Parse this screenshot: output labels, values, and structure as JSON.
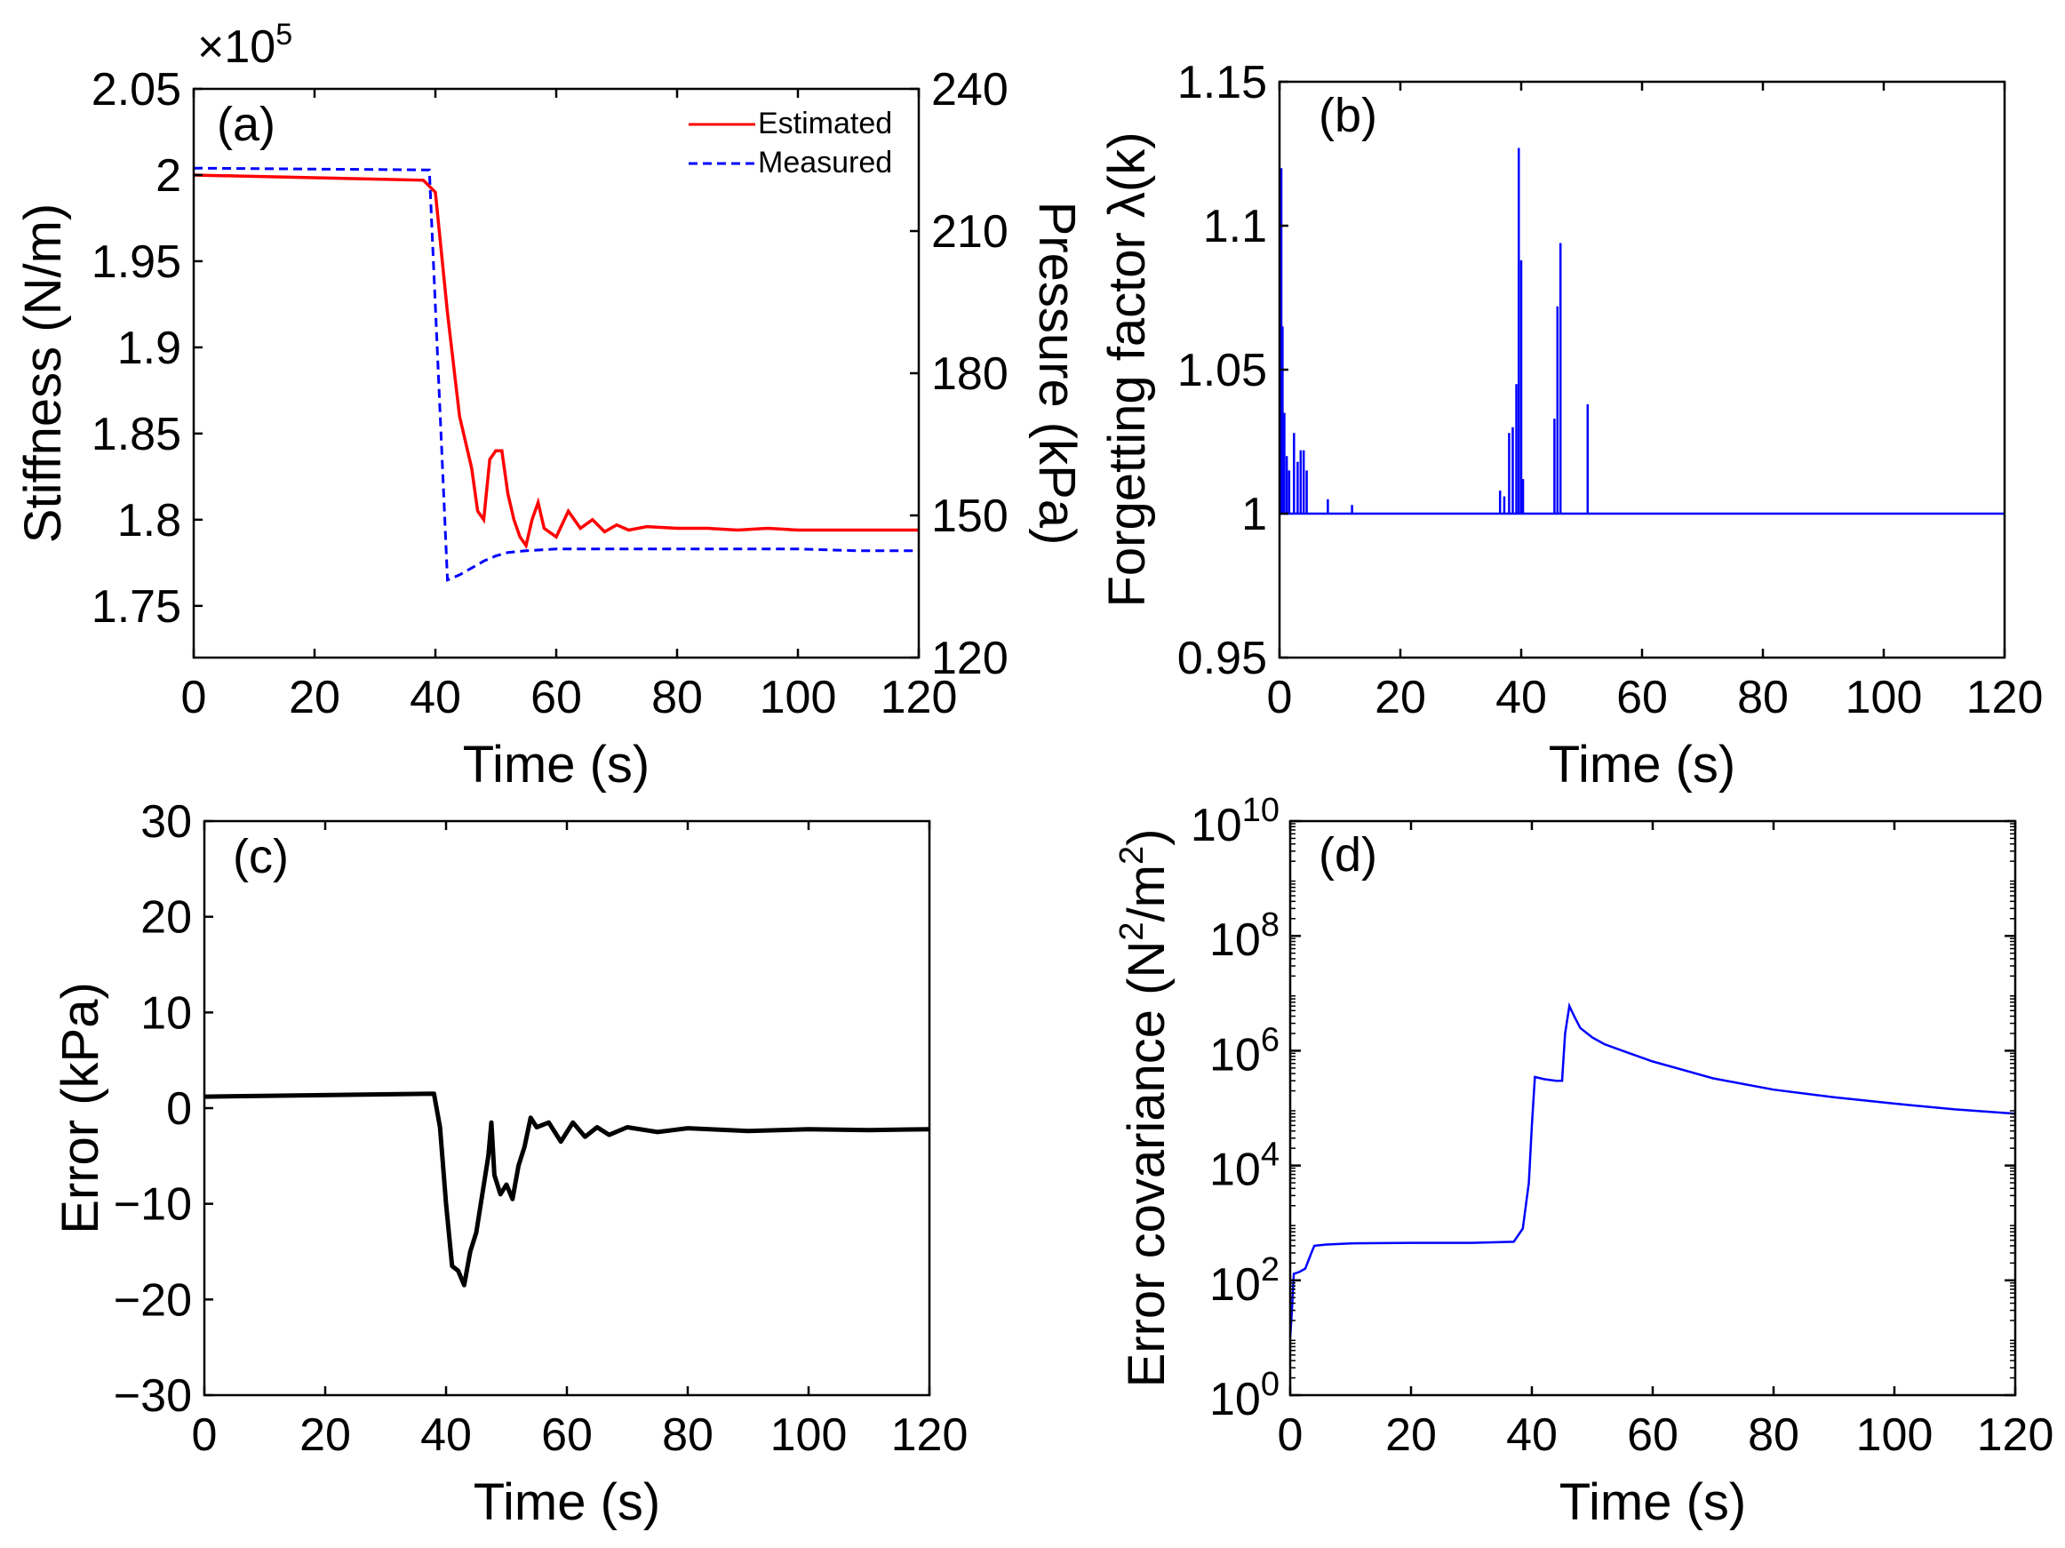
{
  "figure": {
    "panels": [
      {
        "id": "a",
        "letter": "(a)",
        "xlabel": "Time (s)",
        "ylabel": "Stiffness (N/m)",
        "ylabel_right": "Pressure (kPa)",
        "y_exponent_base": "×10",
        "y_exponent_power": "5",
        "legend": [
          {
            "label": "Estimated",
            "color": "#ff0000",
            "style": "solid"
          },
          {
            "label": "Measured",
            "color": "#0000ff",
            "style": "dashed"
          }
        ]
      },
      {
        "id": "b",
        "letter": "(b)",
        "xlabel": "Time (s)",
        "ylabel": "Forgetting factor λ(k)"
      },
      {
        "id": "c",
        "letter": "(c)",
        "xlabel": "Time (s)",
        "ylabel": "Error (kPa)"
      },
      {
        "id": "d",
        "letter": "(d)",
        "xlabel": "Time (s)",
        "ylabel_main": "Error covariance (N",
        "ylabel_sup1": "2",
        "ylabel_mid": "/m",
        "ylabel_sup2": "2",
        "ylabel_end": ")"
      }
    ]
  },
  "chart_data": [
    {
      "panel": "a",
      "type": "line",
      "xlabel": "Time (s)",
      "ylabel": "Stiffness (N/m)",
      "ylabel_right": "Pressure (kPa)",
      "xlim": [
        0,
        120
      ],
      "ylim": [
        1.72,
        2.05
      ],
      "y_scale_factor": "×10^5",
      "ylim_right": [
        120,
        240
      ],
      "x_ticks": [
        0,
        20,
        40,
        60,
        80,
        100,
        120
      ],
      "y_ticks": [
        1.75,
        1.8,
        1.85,
        1.9,
        1.95,
        2,
        2.05
      ],
      "y_tick_labels": [
        "1.75",
        "1.8",
        "1.85",
        "1.9",
        "1.95",
        "2",
        "2.05"
      ],
      "y_right_ticks": [
        120,
        150,
        180,
        210,
        240
      ],
      "series": [
        {
          "name": "Estimated",
          "color": "#ff0000",
          "style": "solid",
          "x": [
            0,
            38,
            40,
            42,
            44,
            46,
            47,
            48,
            49,
            50,
            51,
            52,
            53,
            54,
            55,
            56,
            57,
            58,
            60,
            62,
            64,
            66,
            68,
            70,
            72,
            75,
            80,
            85,
            90,
            95,
            100,
            110,
            120
          ],
          "y": [
            2.0,
            1.997,
            1.99,
            1.92,
            1.86,
            1.83,
            1.805,
            1.8,
            1.835,
            1.84,
            1.84,
            1.815,
            1.8,
            1.79,
            1.785,
            1.8,
            1.81,
            1.795,
            1.79,
            1.805,
            1.795,
            1.8,
            1.793,
            1.797,
            1.794,
            1.796,
            1.795,
            1.795,
            1.794,
            1.795,
            1.794,
            1.794,
            1.794
          ]
        },
        {
          "name": "Measured",
          "color": "#0000ff",
          "style": "dashed",
          "x": [
            0,
            38,
            39,
            42,
            44,
            46,
            48,
            50,
            52,
            55,
            60,
            70,
            80,
            90,
            100,
            110,
            120
          ],
          "y": [
            2.004,
            2.003,
            2.003,
            1.765,
            1.768,
            1.772,
            1.776,
            1.779,
            1.781,
            1.782,
            1.783,
            1.783,
            1.783,
            1.783,
            1.783,
            1.782,
            1.782
          ]
        }
      ]
    },
    {
      "panel": "b",
      "type": "line",
      "xlabel": "Time (s)",
      "ylabel": "Forgetting factor λ(k)",
      "xlim": [
        0,
        120
      ],
      "ylim": [
        0.95,
        1.15
      ],
      "x_ticks": [
        0,
        20,
        40,
        60,
        80,
        100,
        120
      ],
      "y_ticks": [
        0.95,
        1,
        1.05,
        1.1,
        1.15
      ],
      "y_tick_labels": [
        "0.95",
        "1",
        "1.05",
        "1.1",
        "1.15"
      ],
      "series": [
        {
          "color": "#0000ff",
          "baseline": 1.0,
          "spikes_x": [
            0.3,
            0.5,
            0.8,
            1.2,
            1.6,
            2.4,
            3.0,
            3.5,
            4.0,
            4.5,
            8.0,
            12.0,
            36.5,
            37.2,
            38.0,
            38.6,
            39.2,
            39.6,
            40.0,
            40.3,
            45.5,
            46.0,
            46.5,
            51.0
          ],
          "spikes_y": [
            1.12,
            1.065,
            1.035,
            1.02,
            1.015,
            1.028,
            1.018,
            1.022,
            1.022,
            1.015,
            1.005,
            1.003,
            1.008,
            1.006,
            1.028,
            1.03,
            1.045,
            1.127,
            1.088,
            1.012,
            1.033,
            1.072,
            1.094,
            1.038
          ]
        }
      ]
    },
    {
      "panel": "c",
      "type": "line",
      "xlabel": "Time (s)",
      "ylabel": "Error (kPa)",
      "xlim": [
        0,
        120
      ],
      "ylim": [
        -30,
        30
      ],
      "x_ticks": [
        0,
        20,
        40,
        60,
        80,
        100,
        120
      ],
      "y_ticks": [
        -30,
        -20,
        -10,
        0,
        10,
        20,
        30
      ],
      "y_tick_labels": [
        "−30",
        "−20",
        "−10",
        "0",
        "10",
        "20",
        "30"
      ],
      "series": [
        {
          "color": "#000000",
          "x": [
            0,
            38,
            39,
            40,
            41,
            42,
            43,
            44,
            45,
            46,
            47,
            47.5,
            48,
            49,
            50,
            51,
            52,
            53,
            54,
            55,
            57,
            59,
            61,
            63,
            65,
            67,
            70,
            75,
            80,
            90,
            100,
            110,
            120
          ],
          "y": [
            1.2,
            1.5,
            -2,
            -10,
            -16.5,
            -17,
            -18.5,
            -15,
            -13,
            -9,
            -5,
            -1.5,
            -7,
            -9,
            -8,
            -9.5,
            -6,
            -4,
            -1,
            -2,
            -1.5,
            -3.5,
            -1.5,
            -3,
            -2,
            -2.8,
            -2,
            -2.5,
            -2.1,
            -2.4,
            -2.2,
            -2.3,
            -2.2
          ]
        }
      ]
    },
    {
      "panel": "d",
      "type": "line",
      "xlabel": "Time (s)",
      "ylabel": "Error covariance (N^2/m^2)",
      "xlim": [
        0,
        120
      ],
      "ylim": [
        1,
        10000000000.0
      ],
      "y_scale": "log",
      "x_ticks": [
        0,
        20,
        40,
        60,
        80,
        100,
        120
      ],
      "y_ticks_base": "10",
      "y_ticks_exp": [
        "0",
        "2",
        "4",
        "6",
        "8",
        "10"
      ],
      "series": [
        {
          "color": "#0000ff",
          "x": [
            0,
            0.3,
            0.6,
            1.5,
            2.5,
            3.5,
            4.0,
            6,
            10,
            20,
            30,
            37,
            38.5,
            39.5,
            40.0,
            40.5,
            42,
            44,
            45.0,
            45.5,
            46.2,
            47,
            48,
            50,
            52,
            55,
            60,
            70,
            80,
            90,
            100,
            110,
            120
          ],
          "y": [
            10,
            30,
            130,
            140,
            160,
            300,
            400,
            420,
            440,
            450,
            450,
            470,
            800,
            5000,
            50000,
            350000,
            320000,
            300000,
            300000,
            2000000,
            6000000,
            4000000,
            2500000,
            1700000,
            1300000,
            1000000,
            650000,
            330000,
            210000,
            155000,
            120000,
            95000,
            80000
          ]
        }
      ]
    }
  ]
}
